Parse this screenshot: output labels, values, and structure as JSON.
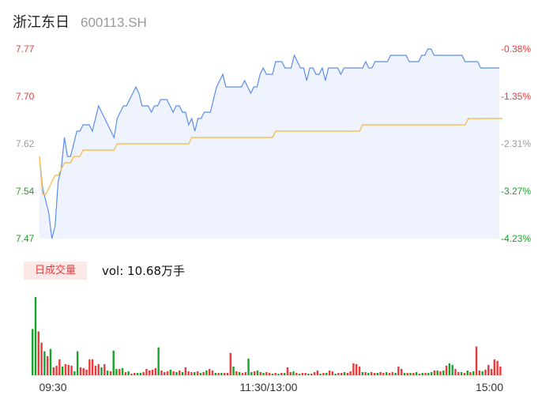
{
  "header": {
    "name": "浙江东日",
    "code": "600113.SH"
  },
  "volume_panel": {
    "badge": "日成交量",
    "vol_text": "vol: 10.68万手"
  },
  "colors": {
    "up": "#e83b3b",
    "down": "#1aa32a",
    "flat": "#9a9a9a",
    "price_line": "#5b8def",
    "avg_line": "#f5c05a",
    "fill": "#eef3fd"
  },
  "chart_data": [
    {
      "type": "line",
      "x_tick_labels": [
        "09:30",
        "11:30/13:00",
        "15:00"
      ],
      "price_axis": {
        "labels": [
          "7.77",
          "7.70",
          "7.62",
          "7.54",
          "7.47"
        ],
        "min": 7.47,
        "max": 7.77
      },
      "pct_axis": {
        "labels": [
          "-0.38%",
          "-1.35%",
          "-2.31%",
          "-3.27%",
          "-4.23%"
        ]
      },
      "series": [
        {
          "role": "price",
          "values": [
            7.6,
            7.55,
            7.53,
            7.51,
            7.47,
            7.49,
            7.56,
            7.58,
            7.63,
            7.6,
            7.6,
            7.62,
            7.64,
            7.64,
            7.65,
            7.65,
            7.65,
            7.64,
            7.66,
            7.68,
            7.67,
            7.66,
            7.65,
            7.64,
            7.63,
            7.66,
            7.67,
            7.68,
            7.68,
            7.69,
            7.7,
            7.71,
            7.7,
            7.68,
            7.68,
            7.68,
            7.67,
            7.68,
            7.68,
            7.69,
            7.69,
            7.69,
            7.68,
            7.67,
            7.68,
            7.68,
            7.67,
            7.67,
            7.65,
            7.66,
            7.64,
            7.66,
            7.66,
            7.67,
            7.67,
            7.67,
            7.69,
            7.71,
            7.72,
            7.73,
            7.71,
            7.71,
            7.71,
            7.71,
            7.71,
            7.71,
            7.72,
            7.71,
            7.7,
            7.71,
            7.71,
            7.73,
            7.74,
            7.73,
            7.73,
            7.73,
            7.75,
            7.75,
            7.75,
            7.74,
            7.74,
            7.74,
            7.76,
            7.75,
            7.74,
            7.74,
            7.72,
            7.74,
            7.74,
            7.73,
            7.73,
            7.74,
            7.72,
            7.74,
            7.74,
            7.74,
            7.74,
            7.73,
            7.74,
            7.74,
            7.74,
            7.74,
            7.74,
            7.74,
            7.74,
            7.75,
            7.74,
            7.74,
            7.75,
            7.75,
            7.75,
            7.75,
            7.75,
            7.76,
            7.76,
            7.76,
            7.76,
            7.76,
            7.76,
            7.75,
            7.75,
            7.75,
            7.75,
            7.76,
            7.76,
            7.77,
            7.77,
            7.76,
            7.76,
            7.76,
            7.76,
            7.76,
            7.76,
            7.76,
            7.76,
            7.76,
            7.76,
            7.75,
            7.75,
            7.75,
            7.75,
            7.75,
            7.74,
            7.74,
            7.74,
            7.74,
            7.74,
            7.74,
            7.74
          ],
          "color": "#5b8def"
        },
        {
          "role": "average",
          "values": [
            7.6,
            7.54,
            7.54,
            7.55,
            7.56,
            7.57,
            7.57,
            7.58,
            7.59,
            7.59,
            7.59,
            7.6,
            7.6,
            7.6,
            7.61,
            7.61,
            7.61,
            7.61,
            7.61,
            7.61,
            7.61,
            7.61,
            7.61,
            7.61,
            7.61,
            7.62,
            7.62,
            7.62,
            7.62,
            7.62,
            7.62,
            7.62,
            7.62,
            7.62,
            7.62,
            7.62,
            7.62,
            7.62,
            7.62,
            7.62,
            7.62,
            7.62,
            7.62,
            7.62,
            7.62,
            7.62,
            7.62,
            7.62,
            7.62,
            7.63,
            7.63,
            7.63,
            7.63,
            7.63,
            7.63,
            7.63,
            7.63,
            7.63,
            7.63,
            7.63,
            7.63,
            7.63,
            7.63,
            7.63,
            7.63,
            7.63,
            7.63,
            7.63,
            7.63,
            7.63,
            7.63,
            7.63,
            7.63,
            7.63,
            7.63,
            7.63,
            7.64,
            7.64,
            7.64,
            7.64,
            7.64,
            7.64,
            7.64,
            7.64,
            7.64,
            7.64,
            7.64,
            7.64,
            7.64,
            7.64,
            7.64,
            7.64,
            7.64,
            7.64,
            7.64,
            7.64,
            7.64,
            7.64,
            7.64,
            7.64,
            7.64,
            7.64,
            7.64,
            7.64,
            7.65,
            7.65,
            7.65,
            7.65,
            7.65,
            7.65,
            7.65,
            7.65,
            7.65,
            7.65,
            7.65,
            7.65,
            7.65,
            7.65,
            7.65,
            7.65,
            7.65,
            7.65,
            7.65,
            7.65,
            7.65,
            7.65,
            7.65,
            7.65,
            7.65,
            7.65,
            7.65,
            7.65,
            7.65,
            7.65,
            7.65,
            7.65,
            7.65,
            7.65,
            7.66,
            7.66,
            7.66,
            7.66,
            7.66,
            7.66,
            7.66,
            7.66,
            7.66,
            7.66,
            7.66,
            7.66
          ],
          "color": "#f5c05a"
        }
      ]
    },
    {
      "type": "bar",
      "x_tick_labels": [
        "09:30",
        "11:30/13:00",
        "15:00"
      ],
      "values": [
        58,
        98,
        55,
        41,
        30,
        24,
        33,
        10,
        12,
        20,
        11,
        14,
        13,
        12,
        5,
        30,
        10,
        9,
        7,
        20,
        20,
        12,
        14,
        10,
        14,
        6,
        5,
        31,
        8,
        8,
        9,
        4,
        5,
        2,
        3,
        3,
        3,
        4,
        8,
        6,
        7,
        9,
        35,
        6,
        4,
        5,
        7,
        5,
        4,
        6,
        4,
        10,
        5,
        4,
        4,
        5,
        3,
        4,
        6,
        8,
        6,
        3,
        3,
        3,
        3,
        3,
        28,
        11,
        5,
        4,
        3,
        4,
        21,
        4,
        5,
        6,
        4,
        3,
        4,
        3,
        2,
        3,
        2,
        3,
        3,
        10,
        4,
        5,
        3,
        2,
        3,
        3,
        2,
        2,
        4,
        6,
        2,
        3,
        3,
        6,
        5,
        2,
        3,
        3,
        4,
        3,
        5,
        15,
        14,
        11,
        4,
        4,
        3,
        4,
        3,
        3,
        4,
        3,
        4,
        3,
        4,
        3,
        11,
        8,
        3,
        3,
        3,
        3,
        4,
        2,
        3,
        3,
        3,
        4,
        6,
        6,
        5,
        6,
        12,
        15,
        13,
        8,
        4,
        4,
        3,
        6,
        4,
        5,
        36,
        6,
        5,
        7,
        13,
        8,
        20,
        18,
        11
      ],
      "bar_colors": [
        "#1aa32a",
        "#1aa32a",
        "#e83b3b",
        "#e83b3b",
        "#1aa32a",
        "#e83b3b",
        "#1aa32a",
        "#e83b3b",
        "#e83b3b",
        "#e83b3b",
        "#1aa32a",
        "#e83b3b",
        "#e83b3b",
        "#e83b3b",
        "#1aa32a",
        "#1aa32a",
        "#e83b3b",
        "#e83b3b",
        "#e83b3b",
        "#e83b3b",
        "#e83b3b",
        "#e83b3b",
        "#e83b3b",
        "#1aa32a",
        "#e83b3b",
        "#1aa32a",
        "#e83b3b",
        "#1aa32a",
        "#1aa32a",
        "#e83b3b",
        "#1aa32a",
        "#e83b3b",
        "#1aa32a",
        "#e83b3b",
        "#e83b3b",
        "#1aa32a",
        "#1aa32a",
        "#e83b3b",
        "#e83b3b",
        "#e83b3b",
        "#e83b3b",
        "#e83b3b",
        "#1aa32a",
        "#e83b3b",
        "#e83b3b",
        "#e83b3b",
        "#1aa32a",
        "#e83b3b",
        "#1aa32a",
        "#e83b3b",
        "#1aa32a",
        "#e83b3b",
        "#e83b3b",
        "#e83b3b",
        "#1aa32a",
        "#e83b3b",
        "#1aa32a",
        "#e83b3b",
        "#1aa32a",
        "#e83b3b",
        "#e83b3b",
        "#1aa32a",
        "#e83b3b",
        "#1aa32a",
        "#e83b3b",
        "#e83b3b",
        "#e83b3b",
        "#1aa32a",
        "#e83b3b",
        "#1aa32a",
        "#e83b3b",
        "#e83b3b",
        "#1aa32a",
        "#1aa32a",
        "#e83b3b",
        "#1aa32a",
        "#e83b3b",
        "#1aa32a",
        "#e83b3b",
        "#e83b3b",
        "#1aa32a",
        "#e83b3b",
        "#1aa32a",
        "#e83b3b",
        "#1aa32a",
        "#e83b3b",
        "#e83b3b",
        "#1aa32a",
        "#e83b3b",
        "#1aa32a",
        "#e83b3b",
        "#e83b3b",
        "#1aa32a",
        "#e83b3b",
        "#e83b3b",
        "#e83b3b",
        "#1aa32a",
        "#e83b3b",
        "#1aa32a",
        "#e83b3b",
        "#e83b3b",
        "#1aa32a",
        "#e83b3b",
        "#e83b3b",
        "#1aa32a",
        "#e83b3b",
        "#e83b3b",
        "#e83b3b",
        "#e83b3b",
        "#e83b3b",
        "#1aa32a",
        "#e83b3b",
        "#1aa32a",
        "#e83b3b",
        "#e83b3b",
        "#1aa32a",
        "#e83b3b",
        "#e83b3b",
        "#1aa32a",
        "#e83b3b",
        "#e83b3b",
        "#1aa32a",
        "#e83b3b",
        "#e83b3b",
        "#1aa32a",
        "#e83b3b",
        "#1aa32a",
        "#e83b3b",
        "#1aa32a",
        "#e83b3b",
        "#1aa32a",
        "#e83b3b",
        "#1aa32a",
        "#1aa32a",
        "#e83b3b",
        "#1aa32a",
        "#e83b3b",
        "#1aa32a",
        "#e83b3b",
        "#1aa32a",
        "#1aa32a",
        "#e83b3b",
        "#e83b3b",
        "#1aa32a",
        "#e83b3b",
        "#1aa32a",
        "#e83b3b",
        "#1aa32a",
        "#e83b3b",
        "#e83b3b",
        "#1aa32a",
        "#e83b3b",
        "#e83b3b",
        "#e83b3b",
        "#e83b3b",
        "#e83b3b",
        "#e83b3b"
      ]
    }
  ]
}
